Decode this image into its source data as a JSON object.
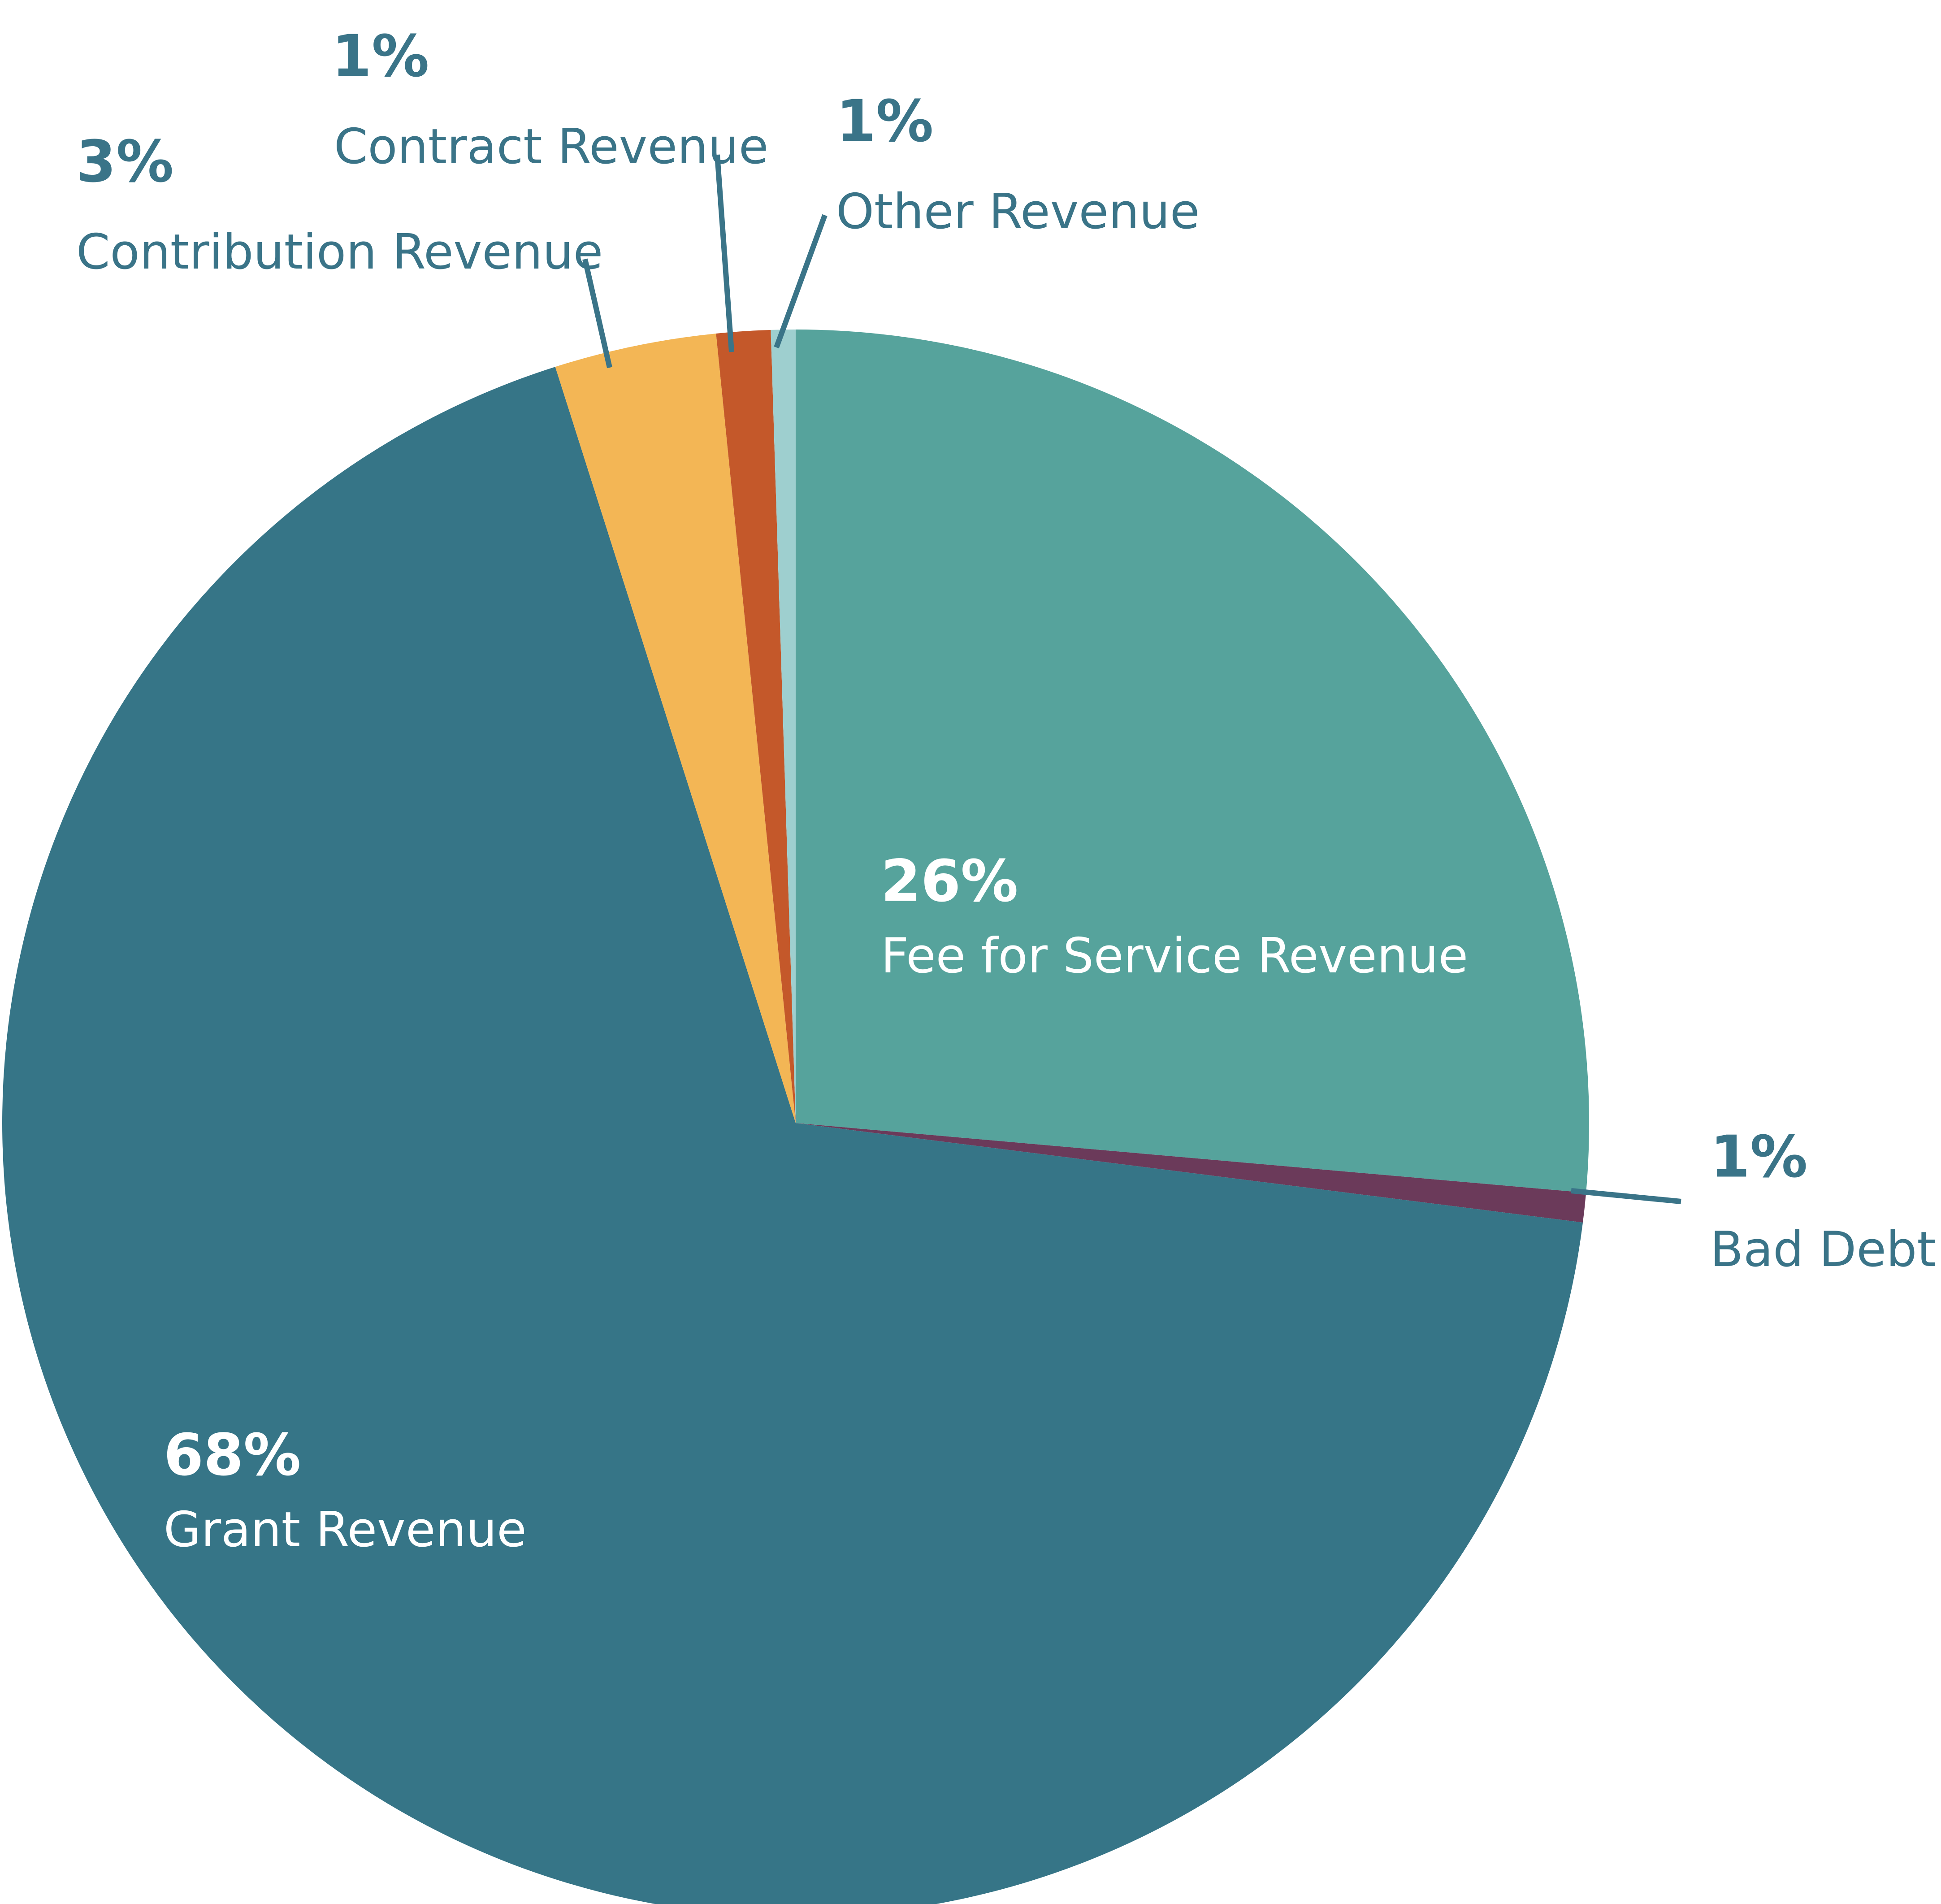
{
  "chart_data": {
    "type": "pie",
    "title": "",
    "start_angle_deg": 0,
    "direction": "clockwise",
    "slices": [
      {
        "label": "Fee for Service Revenue",
        "percent_label": "26%",
        "value": 26.4,
        "color": "#56a39c",
        "label_color": "#ffffff",
        "label_placement": "inside"
      },
      {
        "label": "Bad Debt",
        "percent_label": "1%",
        "value": 0.6,
        "color": "#6b3a5a",
        "label_color": "#3a7488",
        "label_placement": "outside"
      },
      {
        "label": "Grant Revenue",
        "percent_label": "68%",
        "value": 68.1,
        "color": "#367587",
        "label_color": "#ffffff",
        "label_placement": "inside"
      },
      {
        "label": "Contribution Revenue",
        "percent_label": "3%",
        "value": 3.3,
        "color": "#f3b655",
        "label_color": "#3a7488",
        "label_placement": "outside"
      },
      {
        "label": "Contract Revenue",
        "percent_label": "1%",
        "value": 1.1,
        "color": "#c4582a",
        "label_color": "#3a7488",
        "label_placement": "outside"
      },
      {
        "label": "Other Revenue",
        "percent_label": "1%",
        "value": 0.5,
        "color": "#9ecfcf",
        "label_color": "#3a7488",
        "label_placement": "outside"
      }
    ],
    "leader_line_color": "#3a7488"
  }
}
